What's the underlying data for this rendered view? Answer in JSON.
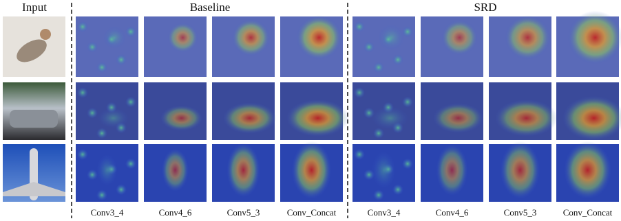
{
  "header": {
    "input": "Input",
    "baseline": "Baseline",
    "srd": "SRD"
  },
  "columns": {
    "baseline": [
      "Conv3_4",
      "Conv4_6",
      "Conv5_3",
      "Conv_Concat"
    ],
    "srd": [
      "Conv3_4",
      "Conv4_6",
      "Conv5_3",
      "Conv_Concat"
    ]
  }
}
